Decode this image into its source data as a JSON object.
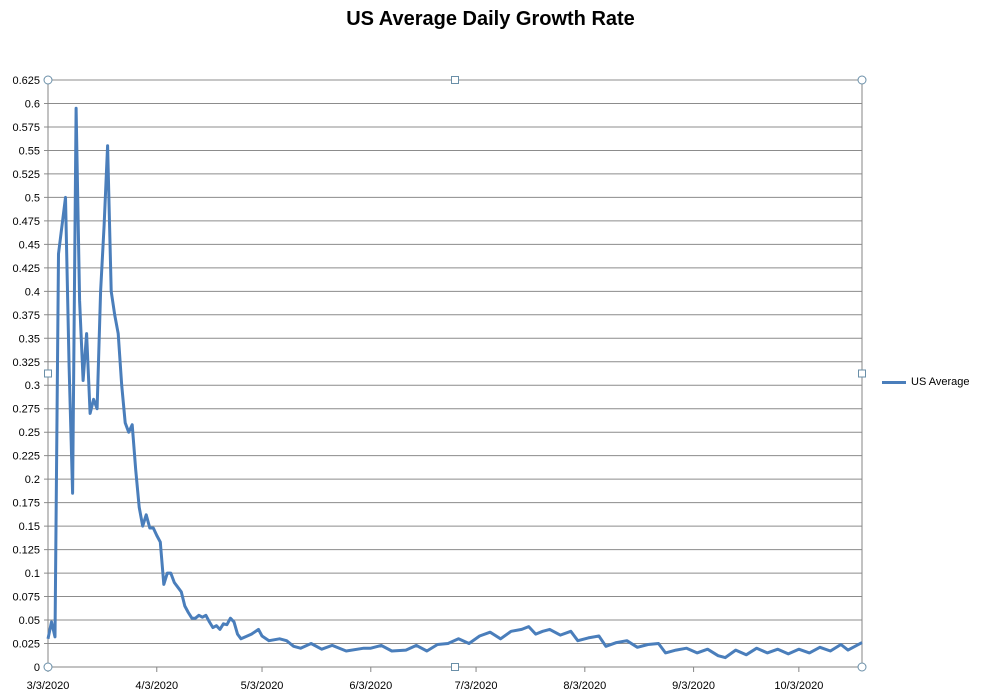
{
  "chart_data": {
    "type": "line",
    "title": "US Average Daily Growth Rate",
    "xlabel": "",
    "ylabel": "",
    "ylim": [
      0,
      0.625
    ],
    "y_ticks": [
      "0",
      "0.025",
      "0.05",
      "0.075",
      "0.1",
      "0.125",
      "0.15",
      "0.175",
      "0.2",
      "0.225",
      "0.25",
      "0.275",
      "0.3",
      "0.325",
      "0.35",
      "0.375",
      "0.4",
      "0.425",
      "0.45",
      "0.475",
      "0.5",
      "0.525",
      "0.55",
      "0.575",
      "0.6",
      "0.625"
    ],
    "x_ticks": [
      "3/3/2020",
      "4/3/2020",
      "5/3/2020",
      "6/3/2020",
      "7/3/2020",
      "8/3/2020",
      "9/3/2020",
      "10/3/2020"
    ],
    "xlim": [
      "3/3/2020",
      "10/21/2020"
    ],
    "grid": true,
    "legend": "right",
    "color": "#4a7ebb",
    "series": [
      {
        "name": "US Average",
        "points": [
          [
            "3/3/2020",
            0.03
          ],
          [
            "3/4/2020",
            0.048
          ],
          [
            "3/5/2020",
            0.032
          ],
          [
            "3/6/2020",
            0.44
          ],
          [
            "3/7/2020",
            0.47
          ],
          [
            "3/8/2020",
            0.5
          ],
          [
            "3/9/2020",
            0.32
          ],
          [
            "3/10/2020",
            0.185
          ],
          [
            "3/11/2020",
            0.595
          ],
          [
            "3/12/2020",
            0.39
          ],
          [
            "3/13/2020",
            0.305
          ],
          [
            "3/14/2020",
            0.355
          ],
          [
            "3/15/2020",
            0.27
          ],
          [
            "3/16/2020",
            0.285
          ],
          [
            "3/17/2020",
            0.275
          ],
          [
            "3/18/2020",
            0.4
          ],
          [
            "3/19/2020",
            0.47
          ],
          [
            "3/20/2020",
            0.555
          ],
          [
            "3/21/2020",
            0.4
          ],
          [
            "3/22/2020",
            0.375
          ],
          [
            "3/23/2020",
            0.355
          ],
          [
            "3/24/2020",
            0.3
          ],
          [
            "3/25/2020",
            0.26
          ],
          [
            "3/26/2020",
            0.25
          ],
          [
            "3/27/2020",
            0.258
          ],
          [
            "3/28/2020",
            0.21
          ],
          [
            "3/29/2020",
            0.17
          ],
          [
            "3/30/2020",
            0.15
          ],
          [
            "3/31/2020",
            0.162
          ],
          [
            "4/1/2020",
            0.148
          ],
          [
            "4/2/2020",
            0.148
          ],
          [
            "4/3/2020",
            0.14
          ],
          [
            "4/4/2020",
            0.133
          ],
          [
            "4/5/2020",
            0.088
          ],
          [
            "4/6/2020",
            0.1
          ],
          [
            "4/7/2020",
            0.1
          ],
          [
            "4/8/2020",
            0.09
          ],
          [
            "4/9/2020",
            0.085
          ],
          [
            "4/10/2020",
            0.08
          ],
          [
            "4/11/2020",
            0.065
          ],
          [
            "4/12/2020",
            0.058
          ],
          [
            "4/13/2020",
            0.052
          ],
          [
            "4/14/2020",
            0.052
          ],
          [
            "4/15/2020",
            0.055
          ],
          [
            "4/16/2020",
            0.053
          ],
          [
            "4/17/2020",
            0.055
          ],
          [
            "4/18/2020",
            0.048
          ],
          [
            "4/19/2020",
            0.042
          ],
          [
            "4/20/2020",
            0.044
          ],
          [
            "4/21/2020",
            0.04
          ],
          [
            "4/22/2020",
            0.046
          ],
          [
            "4/23/2020",
            0.045
          ],
          [
            "4/24/2020",
            0.052
          ],
          [
            "4/25/2020",
            0.048
          ],
          [
            "4/26/2020",
            0.035
          ],
          [
            "4/27/2020",
            0.03
          ],
          [
            "4/30/2020",
            0.035
          ],
          [
            "5/2/2020",
            0.04
          ],
          [
            "5/3/2020",
            0.033
          ],
          [
            "5/5/2020",
            0.028
          ],
          [
            "5/8/2020",
            0.03
          ],
          [
            "5/10/2020",
            0.028
          ],
          [
            "5/12/2020",
            0.022
          ],
          [
            "5/14/2020",
            0.02
          ],
          [
            "5/17/2020",
            0.025
          ],
          [
            "5/20/2020",
            0.019
          ],
          [
            "5/23/2020",
            0.023
          ],
          [
            "5/27/2020",
            0.017
          ],
          [
            "6/1/2020",
            0.02
          ],
          [
            "6/3/2020",
            0.02
          ],
          [
            "6/6/2020",
            0.023
          ],
          [
            "6/9/2020",
            0.017
          ],
          [
            "6/13/2020",
            0.018
          ],
          [
            "6/16/2020",
            0.023
          ],
          [
            "6/19/2020",
            0.017
          ],
          [
            "6/22/2020",
            0.024
          ],
          [
            "6/25/2020",
            0.025
          ],
          [
            "6/28/2020",
            0.03
          ],
          [
            "7/1/2020",
            0.025
          ],
          [
            "7/4/2020",
            0.033
          ],
          [
            "7/7/2020",
            0.037
          ],
          [
            "7/10/2020",
            0.03
          ],
          [
            "7/13/2020",
            0.038
          ],
          [
            "7/16/2020",
            0.04
          ],
          [
            "7/18/2020",
            0.043
          ],
          [
            "7/20/2020",
            0.035
          ],
          [
            "7/22/2020",
            0.038
          ],
          [
            "7/24/2020",
            0.04
          ],
          [
            "7/27/2020",
            0.034
          ],
          [
            "7/30/2020",
            0.038
          ],
          [
            "8/1/2020",
            0.028
          ],
          [
            "8/4/2020",
            0.031
          ],
          [
            "8/7/2020",
            0.033
          ],
          [
            "8/9/2020",
            0.022
          ],
          [
            "8/12/2020",
            0.026
          ],
          [
            "8/15/2020",
            0.028
          ],
          [
            "8/18/2020",
            0.021
          ],
          [
            "8/21/2020",
            0.024
          ],
          [
            "8/24/2020",
            0.025
          ],
          [
            "8/26/2020",
            0.015
          ],
          [
            "8/29/2020",
            0.018
          ],
          [
            "9/1/2020",
            0.02
          ],
          [
            "9/4/2020",
            0.015
          ],
          [
            "9/7/2020",
            0.019
          ],
          [
            "9/10/2020",
            0.012
          ],
          [
            "9/12/2020",
            0.01
          ],
          [
            "9/15/2020",
            0.018
          ],
          [
            "9/18/2020",
            0.013
          ],
          [
            "9/21/2020",
            0.02
          ],
          [
            "9/24/2020",
            0.015
          ],
          [
            "9/27/2020",
            0.019
          ],
          [
            "9/30/2020",
            0.014
          ],
          [
            "10/3/2020",
            0.019
          ],
          [
            "10/6/2020",
            0.015
          ],
          [
            "10/9/2020",
            0.021
          ],
          [
            "10/12/2020",
            0.017
          ],
          [
            "10/15/2020",
            0.024
          ],
          [
            "10/17/2020",
            0.018
          ],
          [
            "10/19/2020",
            0.022
          ],
          [
            "10/21/2020",
            0.026
          ]
        ]
      }
    ]
  }
}
